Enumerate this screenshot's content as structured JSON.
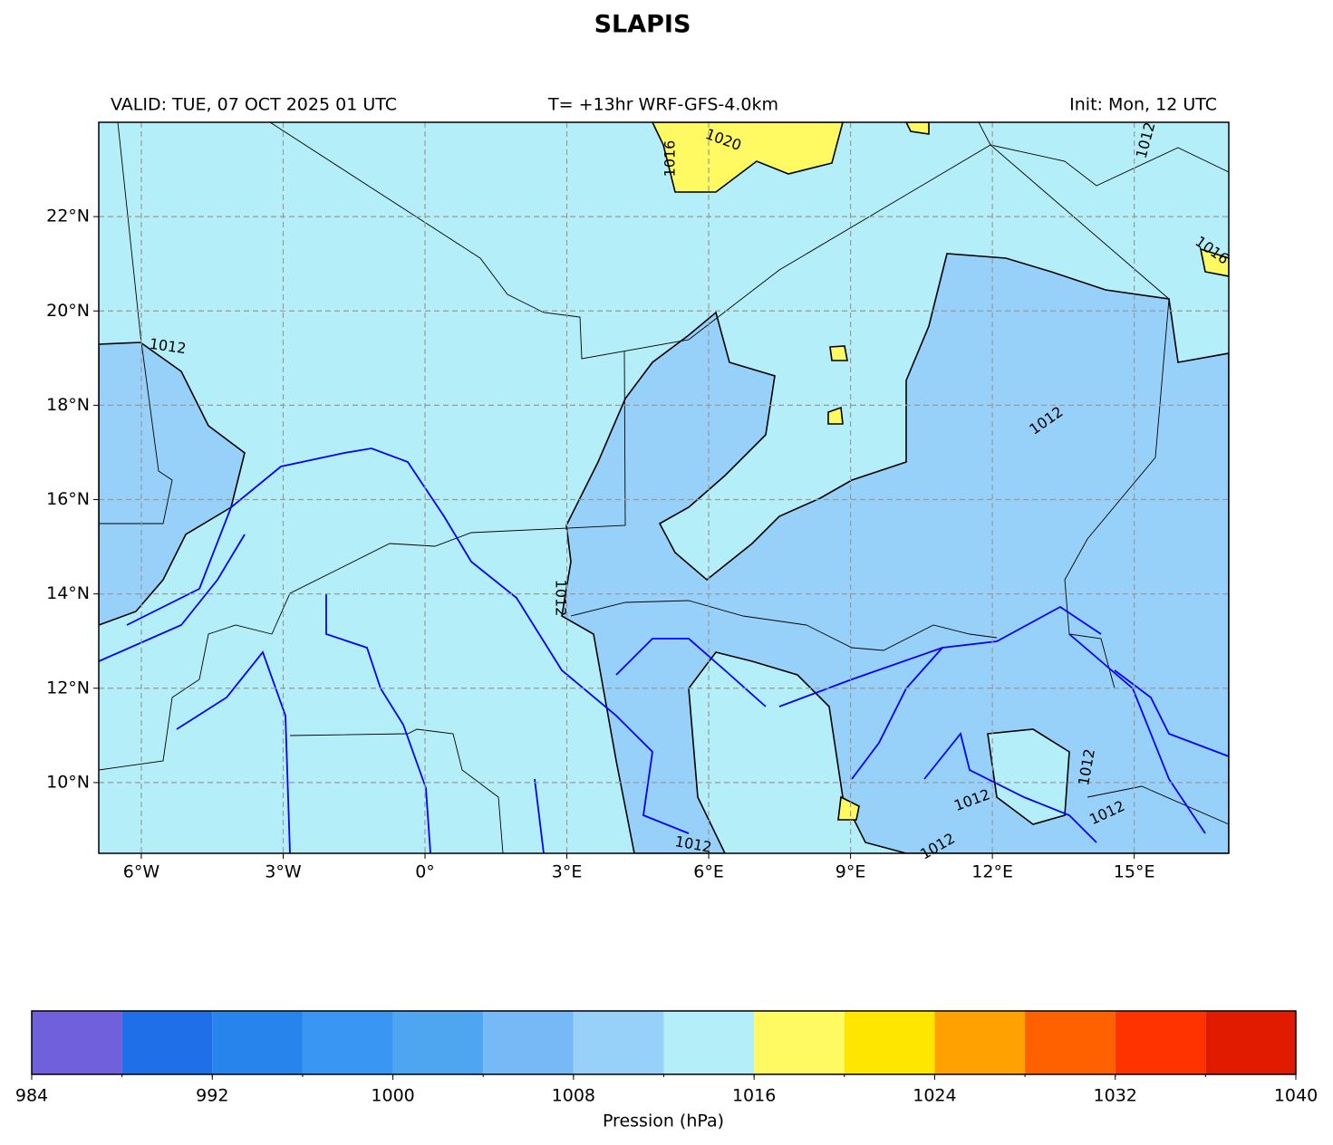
{
  "chart_data": {
    "type": "map",
    "title": "SLAPIS",
    "header_left": "VALID: TUE, 07 OCT 2025 01 UTC",
    "header_center": "T= +13hr WRF-GFS-4.0km",
    "header_right": "Init: Mon, 12 UTC",
    "xlim": [
      -6.9,
      17
    ],
    "ylim": [
      8.5,
      24
    ],
    "xticks": [
      {
        "value": -6,
        "label": "6°W"
      },
      {
        "value": -3,
        "label": "3°W"
      },
      {
        "value": 0,
        "label": "0°"
      },
      {
        "value": 3,
        "label": "3°E"
      },
      {
        "value": 6,
        "label": "6°E"
      },
      {
        "value": 9,
        "label": "9°E"
      },
      {
        "value": 12,
        "label": "12°E"
      },
      {
        "value": 15,
        "label": "15°E"
      }
    ],
    "yticks": [
      {
        "value": 10,
        "label": "10°N"
      },
      {
        "value": 12,
        "label": "12°N"
      },
      {
        "value": 14,
        "label": "14°N"
      },
      {
        "value": 16,
        "label": "16°N"
      },
      {
        "value": 18,
        "label": "18°N"
      },
      {
        "value": 20,
        "label": "20°N"
      },
      {
        "value": 22,
        "label": "22°N"
      }
    ],
    "grid": true,
    "contour_labels": [
      "1016",
      "1020",
      "1012",
      "1012",
      "1016",
      "1012",
      "1012",
      "1012",
      "1012",
      "1012",
      "1012",
      "1012"
    ],
    "colorbar": {
      "label": "Pression (hPa)",
      "boundaries": [
        984,
        988,
        992,
        996,
        1000,
        1004,
        1008,
        1012,
        1016,
        1020,
        1024,
        1028,
        1032,
        1036,
        1040
      ],
      "colors": [
        "#7160db",
        "#1f6fe8",
        "#2784ec",
        "#3a96f3",
        "#4ea5f0",
        "#77b9f7",
        "#97d1f9",
        "#b4eff9",
        "#fffa62",
        "#ffe600",
        "#ffa100",
        "#ff6100",
        "#ff3300",
        "#e01b00"
      ],
      "ticks": [
        984,
        992,
        1000,
        1008,
        1016,
        1024,
        1032,
        1040
      ]
    }
  }
}
